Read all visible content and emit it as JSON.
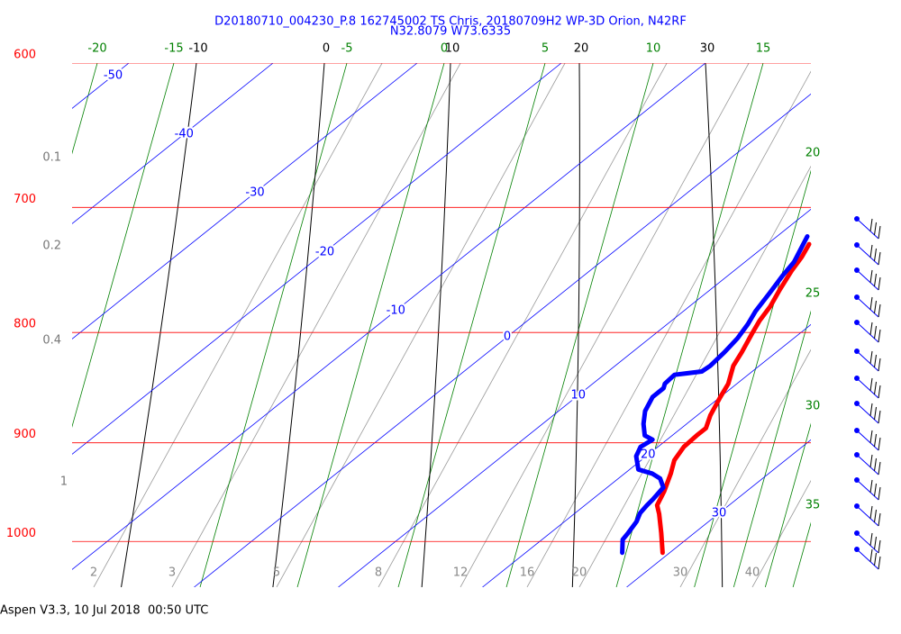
{
  "chart_data": {
    "type": "skewt",
    "title": "D20180710_004230_P.8 162745002 TS Chris, 20180709H2 WP-3D Orion, N42RF",
    "subtitle": "N32.8079 W73.6335",
    "footer": "Aspen V3.3, 10 Jul 2018  00:50 UTC",
    "ylim": [
      600,
      1050
    ],
    "yticks": [
      600,
      700,
      800,
      900,
      1000
    ],
    "log_scale": true,
    "isotherm_labels": [
      -50,
      -40,
      -30,
      -20,
      -10,
      0,
      10,
      20,
      30
    ],
    "black_line_labels": [
      -10,
      0,
      10,
      20,
      30
    ],
    "green_top_labels": [
      -20,
      -15,
      -5,
      0,
      5,
      10,
      15
    ],
    "green_right_labels": [
      20,
      25,
      30,
      35
    ],
    "gray_bottom_labels": [
      2,
      3,
      5,
      8,
      12,
      16,
      20,
      30,
      40
    ],
    "gray_left_labels": [
      0.1,
      0.2,
      0.4,
      1
    ],
    "series": [
      {
        "color": "#ff0000",
        "pressure": [
          1012,
          991,
          971,
          962,
          948,
          930,
          917,
          904,
          893,
          886,
          874,
          857,
          845,
          829,
          817,
          801,
          790,
          778,
          764,
          749,
          738,
          728
        ],
        "values": [
          29.5,
          27.7,
          25.9,
          25.0,
          24.3,
          23.2,
          22.3,
          21.8,
          21.7,
          21.7,
          20.9,
          20.0,
          19.4,
          18.2,
          17.6,
          16.7,
          16.1,
          15.6,
          14.8,
          14.0,
          13.5,
          12.9
        ]
      },
      {
        "color": "#0000ff",
        "pressure": [
          1012,
          998,
          991,
          979,
          970,
          962,
          956,
          944,
          935,
          930,
          926,
          913,
          904,
          897,
          893,
          882,
          870,
          857,
          849,
          845,
          837,
          834,
          829,
          817,
          805,
          793,
          782,
          767,
          753,
          742,
          722
        ],
        "values": [
          26.7,
          25.6,
          25.4,
          25.0,
          24.5,
          24.3,
          24.2,
          23.9,
          22.9,
          21.9,
          20.6,
          19.3,
          18.8,
          19.0,
          18.1,
          17.0,
          16.0,
          15.3,
          15.3,
          15.0,
          14.9,
          16.5,
          16.6,
          16.4,
          16.1,
          15.6,
          15.0,
          14.4,
          13.8,
          13.4,
          12.1
        ]
      }
    ]
  }
}
